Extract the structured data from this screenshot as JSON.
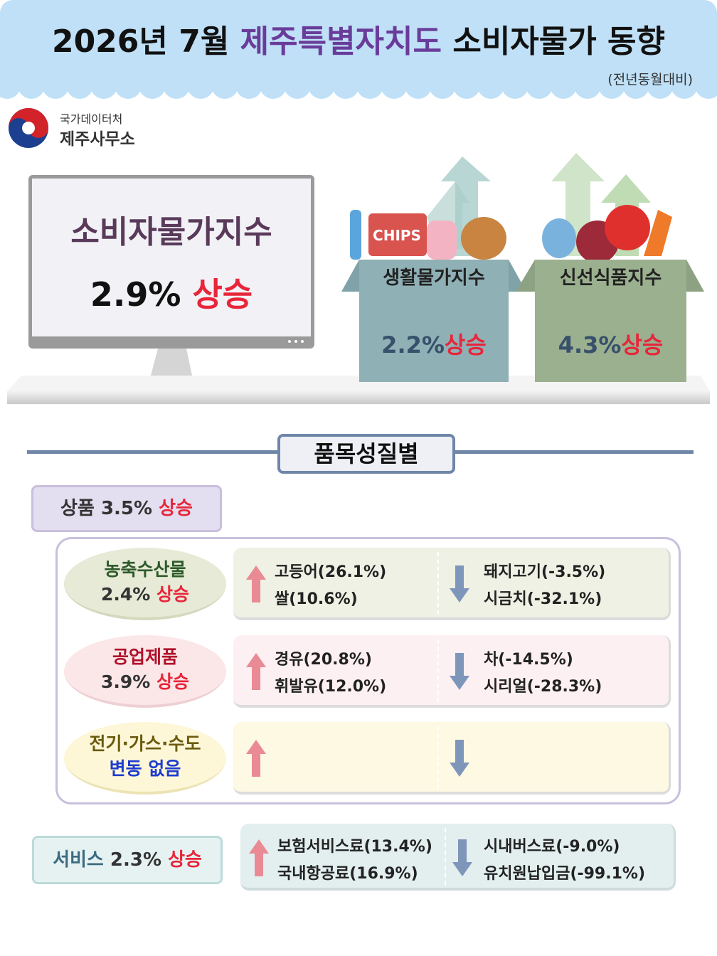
{
  "header": {
    "title_year": "2026년 7월",
    "title_region": "제주특별자치도",
    "title_topic": "소비자물가 동향",
    "subtitle": "(전년동월대비)"
  },
  "logo": {
    "agency": "국가데이터처",
    "office": "제주사무소"
  },
  "headline": {
    "label": "소비자물가지수",
    "rate": "2.9%",
    "direction": "상승"
  },
  "sub_indices": [
    {
      "label": "생활물가지수",
      "rate": "2.2%",
      "direction": "상승"
    },
    {
      "label": "신선식품지수",
      "rate": "4.3%",
      "direction": "상승"
    }
  ],
  "section": {
    "title": "품목성질별"
  },
  "goods": {
    "label": "상품",
    "rate": "3.5%",
    "direction": "상승",
    "groups": [
      {
        "label": "농축수산물",
        "rate": "2.4%",
        "direction": "상승",
        "up": [
          "고등어(26.1%)",
          "쌀(10.6%)"
        ],
        "down": [
          "돼지고기(-3.5%)",
          "시금치(-32.1%)"
        ]
      },
      {
        "label": "공업제품",
        "rate": "3.9%",
        "direction": "상승",
        "up": [
          "경유(20.8%)",
          "휘발유(12.0%)"
        ],
        "down": [
          "차(-14.5%)",
          "시리얼(-28.3%)"
        ]
      },
      {
        "label": "전기·가스·수도",
        "status": "변동 없음"
      }
    ]
  },
  "services": {
    "label": "서비스",
    "rate": "2.3%",
    "direction": "상승",
    "up": [
      "보험서비스료(13.4%)",
      "국내항공료(16.9%)"
    ],
    "down": [
      "시내버스료(-9.0%)",
      "유치원납입금(-99.1%)"
    ]
  }
}
